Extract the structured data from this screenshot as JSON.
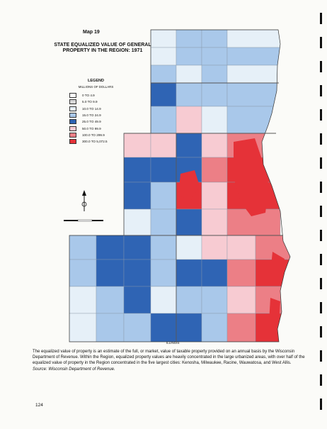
{
  "map_number": "Map 19",
  "title_line1": "STATE EQUALIZED VALUE OF GENERAL",
  "title_line2": "PROPERTY IN THE REGION: 1971",
  "legend": {
    "title": "LEGEND",
    "subtitle": "MILLIONS OF DOLLARS",
    "classes": [
      {
        "label": "0 TO 4.9",
        "color": "#ffffff"
      },
      {
        "label": "5.0 TO 9.9",
        "color": "#d8d8d8"
      },
      {
        "label": "10.0 TO 14.9",
        "color": "#e6f0f8"
      },
      {
        "label": "15.0 TO 24.9",
        "color": "#a9c8ea"
      },
      {
        "label": "25.0 TO 49.9",
        "color": "#2f64b4"
      },
      {
        "label": "50.0 TO 99.9",
        "color": "#f7cbd2"
      },
      {
        "label": "100.0 TO 299.9",
        "color": "#ec7f86"
      },
      {
        "label": "300.0 TO 5,072.5",
        "color": "#e53238"
      }
    ]
  },
  "boundary_label": "ILLINOIS",
  "caption": "The equalized value of property is an estimate of the full, or market, value of taxable property provided on an annual basis by the Wisconsin Department of Revenue. Within the Region, equalized property values are heavily concentrated in the large urbanized areas, with over half of the equalized value of property in the Region concentrated in the five largest cities: Kenosha, Milwaukee, Racine, Wauwatosa, and West Allis.",
  "source": "Source: Wisconsin Department of Revenue.",
  "page_number": "124"
}
